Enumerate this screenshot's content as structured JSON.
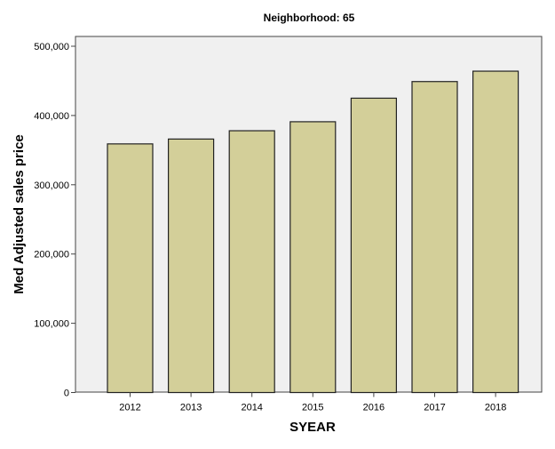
{
  "chart_data": {
    "type": "bar",
    "title": "Neighborhood: 65",
    "xlabel": "SYEAR",
    "ylabel": "Med Adjusted sales price",
    "categories": [
      "2012",
      "2013",
      "2014",
      "2015",
      "2016",
      "2017",
      "2018"
    ],
    "values": [
      359000,
      366000,
      378000,
      391000,
      425000,
      449000,
      464000
    ],
    "ylim": [
      0,
      513000
    ],
    "yticks": [
      0,
      100000,
      200000,
      300000,
      400000,
      500000
    ],
    "ytick_labels": [
      "0",
      "100,000",
      "200,000",
      "300,000",
      "400,000",
      "500,000"
    ],
    "grid": false,
    "colors": {
      "bar": "#d3cf99",
      "plot_background": "#f0f0f0",
      "bar_edge": "#000000"
    }
  }
}
